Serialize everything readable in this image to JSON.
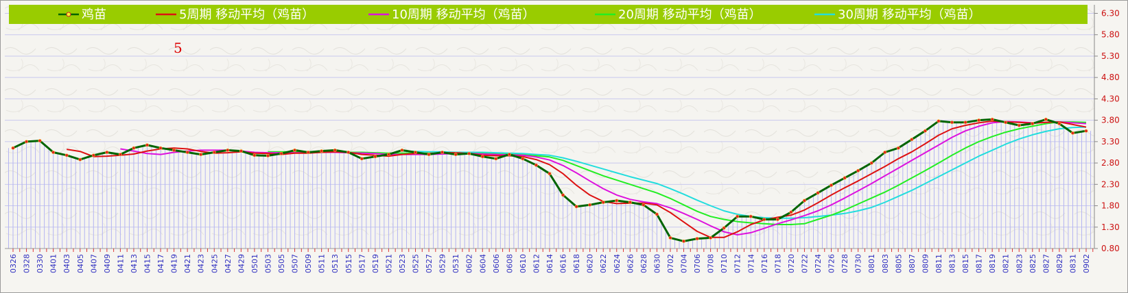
{
  "chart_data": {
    "type": "line",
    "y_ticks": [
      "6.30",
      "5.80",
      "5.30",
      "4.80",
      "4.30",
      "3.80",
      "3.30",
      "2.80",
      "2.30",
      "1.80",
      "1.30",
      "0.80"
    ],
    "ylim": [
      0.8,
      6.5
    ],
    "annotation": "5",
    "legend_position": "top",
    "grid": true,
    "x_dates": [
      "0326",
      "0328",
      "0330",
      "0401",
      "0403",
      "0405",
      "0407",
      "0409",
      "0411",
      "0413",
      "0415",
      "0417",
      "0419",
      "0421",
      "0423",
      "0425",
      "0427",
      "0429",
      "0501",
      "0503",
      "0505",
      "0507",
      "0509",
      "0511",
      "0513",
      "0515",
      "0517",
      "0519",
      "0521",
      "0523",
      "0525",
      "0527",
      "0529",
      "0531",
      "0602",
      "0604",
      "0606",
      "0608",
      "0610",
      "0612",
      "0614",
      "0616",
      "0618",
      "0620",
      "0622",
      "0624",
      "0626",
      "0628",
      "0630",
      "0702",
      "0704",
      "0706",
      "0708",
      "0710",
      "0712",
      "0714",
      "0716",
      "0718",
      "0720",
      "0722",
      "0724",
      "0726",
      "0728",
      "0730",
      "0801",
      "0803",
      "0805",
      "0807",
      "0809",
      "0811",
      "0813",
      "0815",
      "0817",
      "0819",
      "0821",
      "0823",
      "0825",
      "0827",
      "0829",
      "0831",
      "0902"
    ],
    "series": [
      {
        "name": "鸡苗",
        "color": "#006400",
        "marker_color": "#dd2222",
        "values": [
          3.15,
          3.3,
          3.32,
          3.05,
          2.98,
          2.88,
          2.98,
          3.05,
          3.0,
          3.15,
          3.22,
          3.15,
          3.1,
          3.05,
          3.0,
          3.05,
          3.1,
          3.08,
          2.98,
          2.97,
          3.02,
          3.1,
          3.05,
          3.08,
          3.1,
          3.05,
          2.9,
          2.95,
          3.0,
          3.1,
          3.05,
          3.0,
          3.05,
          3.0,
          3.02,
          2.95,
          2.9,
          3.0,
          2.9,
          2.75,
          2.55,
          2.05,
          1.78,
          1.82,
          1.88,
          1.92,
          1.88,
          1.82,
          1.6,
          1.05,
          0.97,
          1.03,
          1.05,
          1.28,
          1.55,
          1.55,
          1.48,
          1.48,
          1.65,
          1.92,
          2.1,
          2.28,
          2.45,
          2.62,
          2.8,
          3.05,
          3.15,
          3.35,
          3.55,
          3.78,
          3.75,
          3.75,
          3.8,
          3.82,
          3.75,
          3.68,
          3.72,
          3.82,
          3.72,
          3.5,
          3.55
        ]
      },
      {
        "name": "5周期 移动平均（鸡苗）",
        "color": "#dd1111",
        "values": [
          null,
          null,
          null,
          null,
          3.12,
          3.07,
          2.95,
          2.96,
          2.98,
          3.01,
          3.08,
          3.13,
          3.15,
          3.13,
          3.07,
          3.03,
          3.04,
          3.06,
          3.03,
          3.02,
          3.0,
          3.03,
          3.03,
          3.05,
          3.06,
          3.05,
          3.0,
          2.98,
          2.96,
          3.0,
          3.02,
          3.02,
          3.04,
          3.04,
          3.02,
          2.98,
          2.97,
          2.97,
          2.95,
          2.88,
          2.76,
          2.55,
          2.28,
          2.05,
          1.9,
          1.85,
          1.86,
          1.86,
          1.82,
          1.64,
          1.42,
          1.2,
          1.06,
          1.06,
          1.19,
          1.36,
          1.47,
          1.53,
          1.58,
          1.7,
          1.87,
          2.05,
          2.22,
          2.38,
          2.55,
          2.72,
          2.9,
          3.06,
          3.25,
          3.45,
          3.6,
          3.68,
          3.74,
          3.78,
          3.76,
          3.75,
          3.73,
          3.75,
          3.76,
          3.7,
          3.64
        ]
      },
      {
        "name": "10周期 移动平均（鸡苗）",
        "color": "#dd11dd",
        "values": [
          null,
          null,
          null,
          null,
          null,
          null,
          null,
          null,
          3.13,
          3.08,
          3.02,
          3.0,
          3.05,
          3.08,
          3.1,
          3.1,
          3.1,
          3.08,
          3.05,
          3.04,
          3.04,
          3.04,
          3.04,
          3.05,
          3.05,
          3.04,
          3.03,
          3.02,
          3.0,
          3.0,
          3.0,
          3.0,
          3.01,
          3.02,
          3.02,
          3.01,
          3.0,
          2.99,
          2.98,
          2.94,
          2.87,
          2.74,
          2.57,
          2.38,
          2.2,
          2.05,
          1.95,
          1.89,
          1.85,
          1.75,
          1.62,
          1.48,
          1.33,
          1.19,
          1.12,
          1.17,
          1.27,
          1.38,
          1.47,
          1.57,
          1.68,
          1.82,
          1.98,
          2.15,
          2.32,
          2.5,
          2.68,
          2.86,
          3.04,
          3.22,
          3.4,
          3.55,
          3.66,
          3.74,
          3.77,
          3.76,
          3.74,
          3.75,
          3.76,
          3.74,
          3.72
        ]
      },
      {
        "name": "20周期 移动平均（鸡苗）",
        "color": "#22ee22",
        "values": [
          null,
          null,
          null,
          null,
          null,
          null,
          null,
          null,
          null,
          null,
          null,
          null,
          null,
          null,
          null,
          null,
          null,
          null,
          null,
          3.06,
          3.06,
          3.06,
          3.06,
          3.06,
          3.05,
          3.05,
          3.05,
          3.04,
          3.03,
          3.03,
          3.03,
          3.03,
          3.03,
          3.03,
          3.02,
          3.02,
          3.01,
          3.0,
          2.99,
          2.97,
          2.94,
          2.86,
          2.74,
          2.62,
          2.5,
          2.4,
          2.3,
          2.2,
          2.1,
          1.97,
          1.82,
          1.67,
          1.55,
          1.48,
          1.43,
          1.4,
          1.38,
          1.36,
          1.36,
          1.38,
          1.48,
          1.58,
          1.7,
          1.84,
          1.98,
          2.12,
          2.28,
          2.45,
          2.62,
          2.8,
          2.98,
          3.15,
          3.3,
          3.42,
          3.52,
          3.6,
          3.66,
          3.72,
          3.76,
          3.76,
          3.75
        ]
      },
      {
        "name": "30周期 移动平均（鸡苗）",
        "color": "#22dddd",
        "values": [
          null,
          null,
          null,
          null,
          null,
          null,
          null,
          null,
          null,
          null,
          null,
          null,
          null,
          null,
          null,
          null,
          null,
          null,
          null,
          null,
          null,
          null,
          null,
          null,
          null,
          null,
          null,
          null,
          null,
          3.08,
          3.07,
          3.06,
          3.06,
          3.05,
          3.05,
          3.05,
          3.04,
          3.03,
          3.02,
          3.0,
          2.98,
          2.92,
          2.84,
          2.75,
          2.66,
          2.57,
          2.48,
          2.4,
          2.32,
          2.2,
          2.07,
          1.93,
          1.8,
          1.68,
          1.6,
          1.55,
          1.52,
          1.51,
          1.51,
          1.52,
          1.55,
          1.58,
          1.62,
          1.68,
          1.76,
          1.88,
          2.02,
          2.16,
          2.32,
          2.48,
          2.64,
          2.8,
          2.96,
          3.1,
          3.24,
          3.36,
          3.46,
          3.54,
          3.6,
          3.63,
          3.64
        ]
      }
    ]
  }
}
